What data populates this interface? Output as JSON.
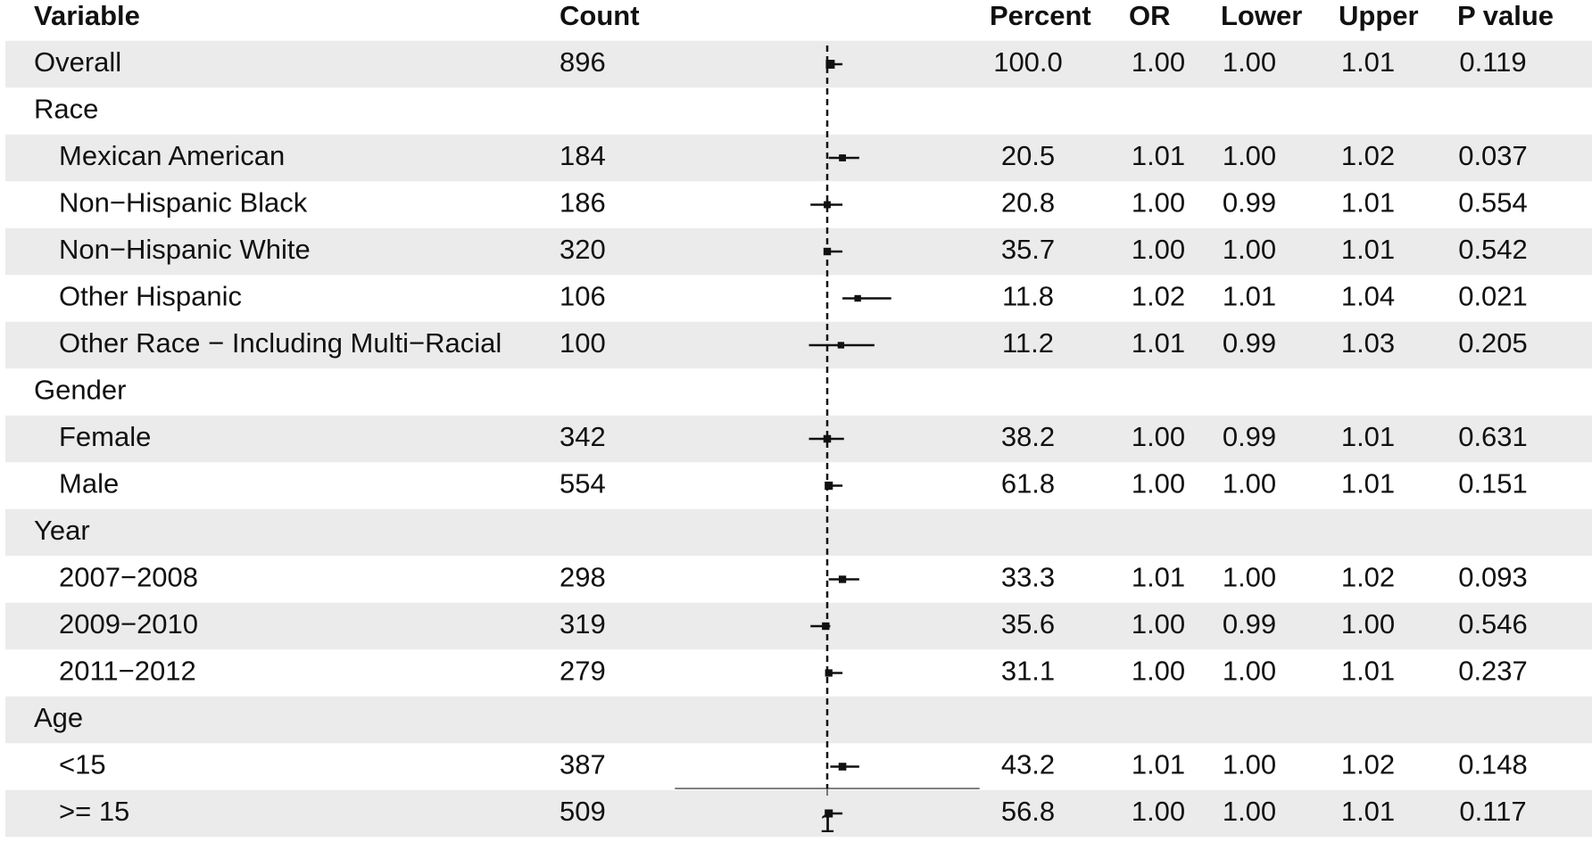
{
  "chart_data": {
    "type": "forest",
    "headers": [
      "Variable",
      "Count",
      "Percent",
      "OR",
      "Lower",
      "Upper",
      "P value"
    ],
    "variables": [
      "Overall",
      "Race",
      "Mexican American",
      "Non−Hispanic Black",
      "Non−Hispanic White",
      "Other Hispanic",
      "Other Race − Including Multi−Racial",
      "Gender",
      "Female",
      "Male",
      "Year",
      "2007−2008",
      "2009−2010",
      "2011−2012",
      "Age",
      "<15",
      ">= 15"
    ],
    "counts": [
      896,
      null,
      184,
      186,
      320,
      106,
      100,
      null,
      342,
      554,
      null,
      298,
      319,
      279,
      null,
      387,
      509
    ],
    "percent": {
      "values": [
        100.0,
        null,
        20.5,
        20.8,
        35.7,
        11.8,
        11.2,
        null,
        38.2,
        61.8,
        null,
        33.3,
        35.6,
        31.1,
        null,
        43.2,
        56.8
      ],
      "value_labels": [
        "100.0",
        null,
        "20.5",
        "20.8",
        "35.7",
        "11.8",
        "11.2",
        null,
        "38.2",
        "61.8",
        null,
        "33.3",
        "35.6",
        "31.1",
        null,
        "43.2",
        "56.8"
      ]
    },
    "or": {
      "values": [
        1.002,
        null,
        1.01,
        1.0,
        1.0,
        1.02,
        1.009,
        null,
        1.0,
        1.001,
        null,
        1.01,
        0.999,
        1.001,
        null,
        1.01,
        1.001
      ],
      "value_labels": [
        "1.00",
        null,
        "1.01",
        "1.00",
        "1.00",
        "1.02",
        "1.01",
        null,
        "1.00",
        "1.00",
        null,
        "1.01",
        "1.00",
        "1.00",
        null,
        "1.01",
        "1.00"
      ]
    },
    "lower": {
      "values": [
        1.0,
        null,
        1.001,
        0.989,
        0.999,
        1.01,
        0.988,
        null,
        0.988,
        0.999,
        null,
        1.001,
        0.989,
        0.999,
        null,
        1.002,
        0.999
      ],
      "value_labels": [
        "1.00",
        null,
        "1.00",
        "0.99",
        "1.00",
        "1.01",
        "0.99",
        null,
        "0.99",
        "1.00",
        null,
        "1.00",
        "0.99",
        "1.00",
        null,
        "1.00",
        "1.00"
      ]
    },
    "upper": {
      "values": [
        1.01,
        null,
        1.021,
        1.01,
        1.01,
        1.042,
        1.031,
        null,
        1.011,
        1.01,
        null,
        1.021,
        1.002,
        1.01,
        null,
        1.021,
        1.01
      ],
      "value_labels": [
        "1.01",
        null,
        "1.02",
        "1.01",
        "1.01",
        "1.04",
        "1.03",
        null,
        "1.01",
        "1.01",
        null,
        "1.02",
        "1.00",
        "1.01",
        null,
        "1.02",
        "1.01"
      ]
    },
    "p_value": {
      "values": [
        0.119,
        null,
        0.037,
        0.554,
        0.542,
        0.021,
        0.205,
        null,
        0.631,
        0.151,
        null,
        0.093,
        0.546,
        0.237,
        null,
        0.148,
        0.117
      ]
    },
    "xlim": [
      0.9,
      1.1
    ],
    "xticks": [
      1
    ],
    "reference_line": 1
  }
}
